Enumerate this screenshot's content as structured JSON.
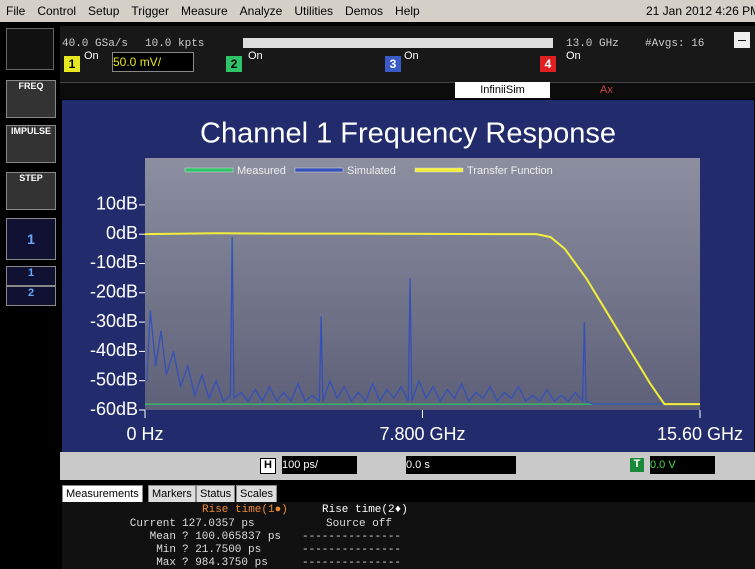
{
  "menu": [
    "File",
    "Control",
    "Setup",
    "Trigger",
    "Measure",
    "Analyze",
    "Utilities",
    "Demos",
    "Help"
  ],
  "datetime": "21 Jan 2012  4:26 PM",
  "status": {
    "sample_rate": "40.0 GSa/s",
    "points": "10.0 kpts",
    "bandwidth": "13.0 GHz",
    "averages": "#Avgs: 16"
  },
  "channels": [
    {
      "number": "1",
      "state": "On",
      "scale": "50.0 mV/"
    },
    {
      "number": "2",
      "state": "On"
    },
    {
      "number": "3",
      "state": "On"
    },
    {
      "number": "4",
      "state": "On"
    }
  ],
  "ruler": {
    "infiniisim": "InfiniiSim",
    "ax": "Ax"
  },
  "sidebar": [
    "FREQ",
    "IMPULSE",
    "STEP",
    "1",
    "1",
    "2"
  ],
  "chart_data": {
    "type": "line",
    "title": "Channel 1 Frequency Response",
    "xlim": [
      0,
      15.6
    ],
    "ylim": [
      -60,
      26
    ],
    "xticks": [
      {
        "value": 0,
        "label": "0 Hz"
      },
      {
        "value": 7.8,
        "label": "7.800 GHz"
      },
      {
        "value": 15.6,
        "label": "15.60 GHz"
      }
    ],
    "yticks": [
      {
        "value": 10,
        "label": "10dB"
      },
      {
        "value": 0,
        "label": "0dB"
      },
      {
        "value": -10,
        "label": "-10dB"
      },
      {
        "value": -20,
        "label": "-20dB"
      },
      {
        "value": -30,
        "label": "-30dB"
      },
      {
        "value": -40,
        "label": "-40dB"
      },
      {
        "value": -50,
        "label": "-50dB"
      },
      {
        "value": -60,
        "label": "-60dB"
      }
    ],
    "series": [
      {
        "name": "Measured",
        "color": "#2fc46a",
        "x": [
          0,
          15.6
        ],
        "values": [
          -58,
          -58
        ]
      },
      {
        "name": "Simulated",
        "color": "#3550b8",
        "x": [
          0.05,
          0.15,
          0.3,
          0.45,
          0.6,
          0.8,
          1.0,
          1.2,
          1.4,
          1.6,
          1.8,
          2.0,
          2.2,
          2.4,
          2.45,
          2.5,
          2.7,
          2.9,
          3.1,
          3.3,
          3.5,
          3.7,
          3.9,
          4.1,
          4.3,
          4.5,
          4.7,
          4.9,
          4.95,
          5.0,
          5.2,
          5.4,
          5.6,
          5.8,
          6.0,
          6.2,
          6.4,
          6.6,
          6.8,
          7.0,
          7.2,
          7.4,
          7.45,
          7.5,
          7.7,
          7.9,
          8.1,
          8.3,
          8.5,
          8.7,
          8.9,
          9.1,
          9.3,
          9.5,
          9.7,
          9.9,
          10.1,
          10.3,
          10.5,
          10.7,
          10.9,
          11.1,
          11.3,
          11.5,
          11.7,
          11.9,
          12.1,
          12.3,
          12.35,
          12.4,
          12.6,
          13.5,
          14.5,
          15.6
        ],
        "values": [
          -50,
          -26,
          -45,
          -33,
          -48,
          -40,
          -52,
          -45,
          -55,
          -48,
          -56,
          -50,
          -57,
          -55,
          -1,
          -56,
          -54,
          -57,
          -53,
          -57,
          -52,
          -57,
          -54,
          -57,
          -51,
          -57,
          -55,
          -57,
          -28,
          -57,
          -50,
          -56,
          -52,
          -57,
          -54,
          -57,
          -51,
          -57,
          -53,
          -56,
          -52,
          -57,
          -15,
          -57,
          -50,
          -56,
          -52,
          -57,
          -53,
          -56,
          -51,
          -57,
          -54,
          -56,
          -52,
          -57,
          -54,
          -56,
          -52,
          -57,
          -55,
          -57,
          -53,
          -57,
          -55,
          -57,
          -54,
          -57,
          -30,
          -57,
          -58,
          -58,
          -58,
          -58
        ]
      },
      {
        "name": "Transfer Function",
        "color": "#f2ee3a",
        "x": [
          0,
          2,
          4,
          6,
          8,
          10,
          11,
          11.4,
          11.8,
          12.4,
          13,
          13.6,
          14.2,
          14.6,
          15.6
        ],
        "values": [
          0,
          0.3,
          0.2,
          0.2,
          0.1,
          0,
          0,
          -1,
          -5,
          -15,
          -27,
          -39,
          -51,
          -58,
          -58
        ]
      }
    ]
  },
  "toolbar": {
    "h": "H",
    "timebase": "100 ps/",
    "delay": "0.0 s",
    "t": "T",
    "trigger_level": "0.0 V"
  },
  "tabs": [
    "Measurements",
    "Markers",
    "Status",
    "Scales"
  ],
  "measurements": {
    "headers": [
      "Rise time(1●)",
      "Rise time(2♦)"
    ],
    "rows": [
      {
        "label": "Current",
        "values": [
          "127.0357 ps",
          "Source off"
        ]
      },
      {
        "label": "Mean",
        "values": [
          "? 100.065837 ps",
          "---------------"
        ]
      },
      {
        "label": "Min",
        "values": [
          "? 21.7500 ps",
          "---------------"
        ]
      },
      {
        "label": "Max",
        "values": [
          "? 984.3750 ps",
          "---------------"
        ]
      }
    ]
  }
}
